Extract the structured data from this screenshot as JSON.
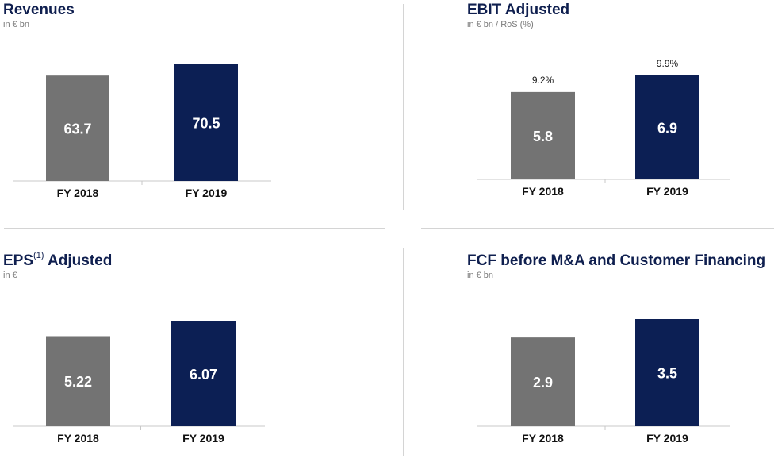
{
  "colors": {
    "fy2018": "#737373",
    "fy2019": "#0c1f54",
    "title": "#0f1f4f",
    "axis": "#c8c8c8"
  },
  "panels": [
    {
      "title": "Revenues",
      "subtitle": "in € bn"
    },
    {
      "title": "EBIT Adjusted",
      "subtitle": "in € bn / RoS (%)"
    },
    {
      "title_pre": "EPS",
      "title_sup": "(1)",
      "title_post": " Adjusted",
      "subtitle": "in €"
    },
    {
      "title": "FCF before M&A and Customer Financing",
      "subtitle": "in € bn"
    }
  ],
  "chart_data": [
    {
      "type": "bar",
      "title": "Revenues",
      "unit": "in € bn",
      "categories": [
        "FY 2018",
        "FY 2019"
      ],
      "values": [
        63.7,
        70.5
      ],
      "value_labels": [
        "63.7",
        "70.5"
      ],
      "above_labels": [
        "",
        ""
      ]
    },
    {
      "type": "bar",
      "title": "EBIT Adjusted",
      "unit": "in € bn / RoS (%)",
      "categories": [
        "FY 2018",
        "FY 2019"
      ],
      "values": [
        5.8,
        6.9
      ],
      "value_labels": [
        "5.8",
        "6.9"
      ],
      "above_labels": [
        "9.2%",
        "9.9%"
      ]
    },
    {
      "type": "bar",
      "title": "EPS(1) Adjusted",
      "unit": "in €",
      "categories": [
        "FY 2018",
        "FY 2019"
      ],
      "values": [
        5.22,
        6.07
      ],
      "value_labels": [
        "5.22",
        "6.07"
      ],
      "above_labels": [
        "",
        ""
      ]
    },
    {
      "type": "bar",
      "title": "FCF before M&A and Customer Financing",
      "unit": "in € bn",
      "categories": [
        "FY 2018",
        "FY 2019"
      ],
      "values": [
        2.9,
        3.5
      ],
      "value_labels": [
        "2.9",
        "3.5"
      ],
      "above_labels": [
        "",
        ""
      ]
    }
  ]
}
